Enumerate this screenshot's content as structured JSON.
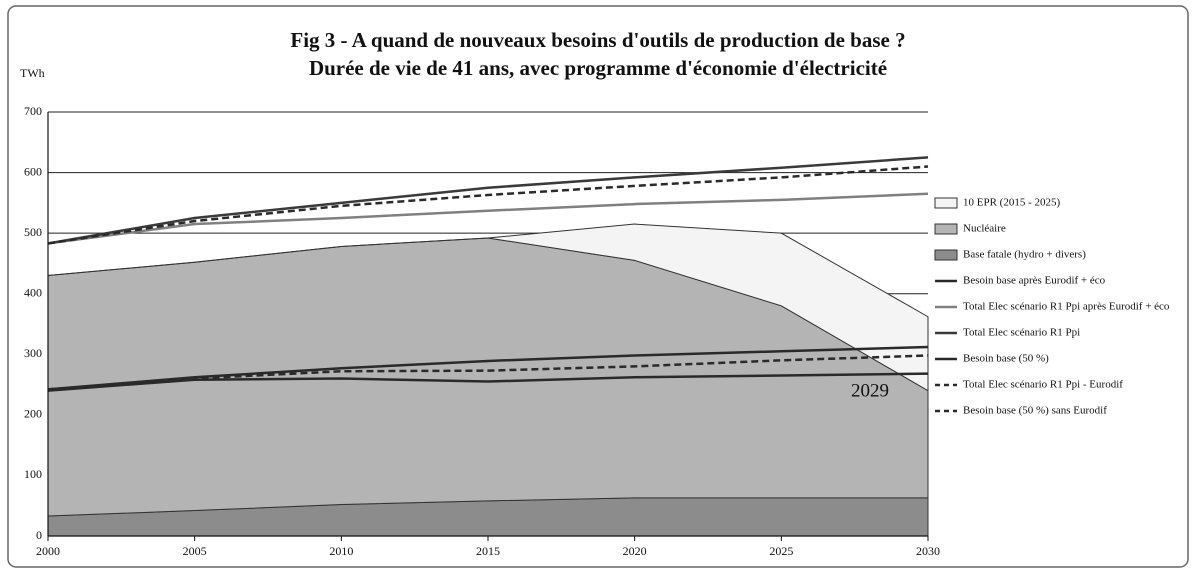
{
  "chart_data": {
    "type": "area",
    "title": "Fig 3 - A quand de nouveaux besoins d'outils de production de base ?",
    "subtitle": "Durée de vie de 41 ans, avec programme d'économie d'électricité",
    "y_label": "TWh",
    "annotation": "2029",
    "x": [
      2000,
      2005,
      2010,
      2015,
      2020,
      2025,
      2030
    ],
    "xlim": [
      2000,
      2030
    ],
    "xticks": [
      2000,
      2005,
      2010,
      2015,
      2020,
      2025,
      2030
    ],
    "ylim": [
      0,
      700
    ],
    "yticks": [
      0,
      100,
      200,
      300,
      400,
      500,
      600,
      700
    ],
    "grid": true,
    "legend": "right",
    "series": [
      {
        "name": "10 EPR (2015 - 2025)",
        "type": "area",
        "color": "#f4f4f4",
        "values": [
          0,
          0,
          0,
          0,
          60,
          120,
          122
        ]
      },
      {
        "name": "Nucléaire",
        "type": "area",
        "color": "#b4b4b4",
        "values": [
          397,
          410,
          426,
          434,
          392,
          317,
          177
        ]
      },
      {
        "name": "Base fatale (hydro + divers)",
        "type": "area",
        "color": "#8c8c8c",
        "values": [
          33,
          42,
          52,
          58,
          63,
          63,
          63
        ]
      },
      {
        "name": "Besoin base après Eurodif + éco",
        "type": "line",
        "color": "#2a2a2a",
        "dashed": false,
        "values": [
          240,
          258,
          260,
          255,
          262,
          265,
          268
        ]
      },
      {
        "name": "Total Elec scénario R1 Ppi après Eurodif + éco",
        "type": "line",
        "color": "#808080",
        "dashed": false,
        "values": [
          483,
          515,
          525,
          537,
          548,
          555,
          565
        ]
      },
      {
        "name": "Total Elec scénario R1 Ppi",
        "type": "line",
        "color": "#3a3a3a",
        "dashed": false,
        "values": [
          483,
          525,
          550,
          575,
          592,
          608,
          625
        ]
      },
      {
        "name": "Besoin base (50 %)",
        "type": "line",
        "color": "#2a2a2a",
        "dashed": false,
        "values": [
          242,
          262,
          277,
          289,
          298,
          305,
          312
        ]
      },
      {
        "name": "Total Elec scénario R1 Ppi - Eurodif",
        "type": "line",
        "color": "#2a2a2a",
        "dashed": true,
        "values": [
          483,
          520,
          545,
          563,
          578,
          592,
          610
        ]
      },
      {
        "name": "Besoin base (50 %) sans Eurodif",
        "type": "line",
        "color": "#2a2a2a",
        "dashed": true,
        "values": [
          242,
          260,
          272,
          273,
          280,
          290,
          298
        ]
      }
    ]
  }
}
